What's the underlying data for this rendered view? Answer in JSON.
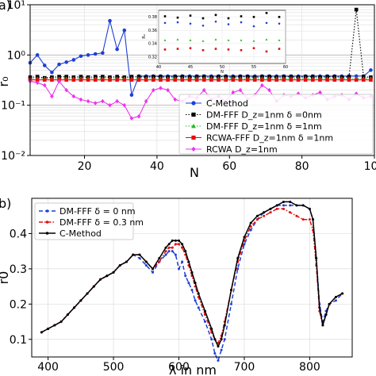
{
  "chart_data": [
    {
      "type": "line",
      "panel_label": "a)",
      "xlabel": "N",
      "ylabel": "r₀",
      "yscale": "log",
      "xlim": [
        5,
        100
      ],
      "ylim": [
        0.01,
        10
      ],
      "xticks": [
        20,
        40,
        60,
        80,
        100
      ],
      "yticks": [
        {
          "value": 0.01,
          "label": "10⁻²"
        },
        {
          "value": 0.1,
          "label": "10⁻¹"
        },
        {
          "value": 1,
          "label": "10⁰"
        },
        {
          "value": 10,
          "label": "10¹"
        }
      ],
      "grid": true,
      "legend_position": "lower-right",
      "series": [
        {
          "name": "C-Method",
          "color": "#1f3fd6",
          "marker": "circle",
          "linestyle": "solid",
          "x": [
            5,
            7,
            9,
            11,
            13,
            15,
            17,
            19,
            21,
            23,
            25,
            27,
            29,
            31,
            33,
            35,
            37,
            39,
            41,
            43,
            45,
            47,
            49,
            51,
            53,
            55,
            57,
            59,
            61,
            63,
            65,
            67,
            69,
            71,
            73,
            75,
            77,
            79,
            81,
            83,
            85,
            87,
            89,
            91,
            93,
            95,
            97,
            99
          ],
          "y": [
            0.7,
            1.0,
            0.62,
            0.45,
            0.65,
            0.72,
            0.8,
            0.95,
            1.0,
            1.05,
            1.1,
            4.8,
            1.3,
            3.1,
            0.16,
            0.38,
            0.38,
            0.38,
            0.38,
            0.38,
            0.38,
            0.38,
            0.38,
            0.38,
            0.38,
            0.38,
            0.38,
            0.38,
            0.38,
            0.38,
            0.38,
            0.38,
            0.38,
            0.38,
            0.38,
            0.38,
            0.38,
            0.38,
            0.38,
            0.38,
            0.38,
            0.38,
            0.38,
            0.38,
            0.38,
            0.38,
            0.38,
            0.5
          ]
        },
        {
          "name": "DM-FFF D_z=1nm δ =0nm",
          "color": "#000000",
          "marker": "square",
          "linestyle": "dotted",
          "x": [
            5,
            7,
            9,
            11,
            13,
            15,
            17,
            19,
            21,
            23,
            25,
            27,
            29,
            31,
            33,
            35,
            37,
            39,
            41,
            43,
            45,
            47,
            49,
            51,
            53,
            55,
            57,
            59,
            61,
            63,
            65,
            67,
            69,
            71,
            73,
            75,
            77,
            79,
            81,
            83,
            85,
            87,
            89,
            91,
            93,
            95,
            97,
            99
          ],
          "y": [
            0.36,
            0.37,
            0.35,
            0.36,
            0.37,
            0.37,
            0.36,
            0.37,
            0.36,
            0.37,
            0.37,
            0.36,
            0.37,
            0.36,
            0.37,
            0.37,
            0.36,
            0.37,
            0.37,
            0.36,
            0.37,
            0.37,
            0.36,
            0.37,
            0.37,
            0.36,
            0.37,
            0.37,
            0.36,
            0.37,
            0.37,
            0.36,
            0.37,
            0.37,
            0.36,
            0.37,
            0.37,
            0.36,
            0.37,
            0.37,
            0.36,
            0.37,
            0.37,
            0.36,
            0.37,
            8.0,
            0.37,
            0.36
          ]
        },
        {
          "name": "DM-FFF D_z=1nm δ =1nm",
          "color": "#22bb22",
          "marker": "triangle",
          "linestyle": "dotted",
          "x": [
            5,
            7,
            9,
            11,
            13,
            15,
            17,
            19,
            21,
            23,
            25,
            27,
            29,
            31,
            33,
            35,
            37,
            39,
            41,
            43,
            45,
            47,
            49,
            51,
            53,
            55,
            57,
            59,
            61,
            63,
            65,
            67,
            69,
            71,
            73,
            75,
            77,
            79,
            81,
            83,
            85,
            87,
            89,
            91,
            93,
            95,
            97,
            99
          ],
          "y": [
            0.34,
            0.34,
            0.34,
            0.34,
            0.34,
            0.34,
            0.34,
            0.34,
            0.34,
            0.34,
            0.34,
            0.34,
            0.34,
            0.34,
            0.34,
            0.34,
            0.34,
            0.34,
            0.34,
            0.34,
            0.34,
            0.34,
            0.34,
            0.34,
            0.34,
            0.34,
            0.34,
            0.34,
            0.34,
            0.34,
            0.34,
            0.34,
            0.34,
            0.34,
            0.34,
            0.34,
            0.34,
            0.34,
            0.34,
            0.34,
            0.34,
            0.34,
            0.34,
            0.34,
            0.34,
            0.34,
            0.34,
            0.34
          ]
        },
        {
          "name": "RCWA-FFF D_z=1nm δ =1nm",
          "color": "#e01010",
          "marker": "square",
          "linestyle": "solid",
          "x": [
            5,
            7,
            9,
            11,
            13,
            15,
            17,
            19,
            21,
            23,
            25,
            27,
            29,
            31,
            33,
            35,
            37,
            39,
            41,
            43,
            45,
            47,
            49,
            51,
            53,
            55,
            57,
            59,
            61,
            63,
            65,
            67,
            69,
            71,
            73,
            75,
            77,
            79,
            81,
            83,
            85,
            87,
            89,
            91,
            93,
            95,
            97,
            99
          ],
          "y": [
            0.32,
            0.32,
            0.32,
            0.32,
            0.32,
            0.32,
            0.32,
            0.32,
            0.32,
            0.32,
            0.32,
            0.32,
            0.32,
            0.32,
            0.32,
            0.32,
            0.32,
            0.32,
            0.32,
            0.32,
            0.32,
            0.32,
            0.32,
            0.32,
            0.32,
            0.32,
            0.32,
            0.32,
            0.32,
            0.32,
            0.32,
            0.32,
            0.32,
            0.32,
            0.32,
            0.32,
            0.32,
            0.32,
            0.32,
            0.32,
            0.32,
            0.32,
            0.32,
            0.32,
            0.32,
            0.32,
            0.32,
            0.32
          ]
        },
        {
          "name": "RCWA D_z=1nm",
          "color": "#ee33ee",
          "marker": "diamond",
          "linestyle": "solid",
          "x": [
            5,
            7,
            9,
            11,
            13,
            15,
            17,
            19,
            21,
            23,
            25,
            27,
            29,
            31,
            33,
            35,
            37,
            39,
            41,
            43,
            45,
            47,
            49,
            51,
            53,
            55,
            57,
            59,
            61,
            63,
            65,
            67,
            69,
            71,
            73,
            75,
            77,
            79,
            81,
            83,
            85,
            87,
            89,
            91,
            93,
            95,
            97,
            99
          ],
          "y": [
            0.3,
            0.28,
            0.25,
            0.15,
            0.3,
            0.2,
            0.15,
            0.13,
            0.12,
            0.11,
            0.12,
            0.1,
            0.12,
            0.1,
            0.055,
            0.06,
            0.12,
            0.2,
            0.22,
            0.2,
            0.13,
            0.12,
            0.15,
            0.14,
            0.2,
            0.13,
            0.15,
            0.12,
            0.18,
            0.2,
            0.13,
            0.16,
            0.25,
            0.2,
            0.12,
            0.16,
            0.15,
            0.17,
            0.14,
            0.16,
            0.18,
            0.13,
            0.15,
            0.16,
            0.13,
            0.17,
            0.14,
            0.15
          ]
        }
      ],
      "inset": {
        "xlabel": "N",
        "ylabel": "R₀",
        "xlim": [
          40,
          60
        ],
        "ylim": [
          0.31,
          0.39
        ],
        "xticks": [
          40,
          45,
          50,
          55,
          60
        ],
        "yticks": [
          0.32,
          0.34,
          0.36,
          0.38
        ],
        "series": [
          {
            "color": "#000000",
            "marker": "square",
            "x": [
              41,
              43,
              45,
              47,
              49,
              51,
              53,
              55,
              57,
              59
            ],
            "y": [
              0.381,
              0.379,
              0.382,
              0.378,
              0.383,
              0.378,
              0.381,
              0.38,
              0.386,
              0.38
            ]
          },
          {
            "color": "#1f3fd6",
            "marker": "circle",
            "x": [
              41,
              43,
              45,
              47,
              49,
              51,
              53,
              55,
              57,
              59
            ],
            "y": [
              0.371,
              0.372,
              0.37,
              0.367,
              0.373,
              0.369,
              0.372,
              0.366,
              0.371,
              0.37
            ]
          },
          {
            "color": "#22bb22",
            "marker": "triangle",
            "x": [
              41,
              43,
              45,
              47,
              49,
              51,
              53,
              55,
              57,
              59
            ],
            "y": [
              0.345,
              0.346,
              0.345,
              0.344,
              0.346,
              0.345,
              0.345,
              0.344,
              0.346,
              0.345
            ]
          },
          {
            "color": "#e01010",
            "marker": "square",
            "x": [
              41,
              43,
              45,
              47,
              49,
              51,
              53,
              55,
              57,
              59
            ],
            "y": [
              0.331,
              0.332,
              0.333,
              0.33,
              0.332,
              0.331,
              0.33,
              0.333,
              0.328,
              0.332
            ]
          }
        ]
      }
    },
    {
      "type": "line",
      "panel_label": "b)",
      "xlabel": "λ in nm",
      "ylabel": "r0",
      "xlim": [
        375,
        865
      ],
      "ylim": [
        0.05,
        0.5
      ],
      "xticks": [
        400,
        500,
        600,
        700,
        800
      ],
      "yticks": [
        0.1,
        0.2,
        0.3,
        0.4
      ],
      "grid": true,
      "legend_position": "top-left",
      "x": [
        390,
        400,
        410,
        420,
        430,
        440,
        450,
        460,
        470,
        480,
        490,
        500,
        510,
        520,
        530,
        540,
        550,
        560,
        570,
        580,
        585,
        590,
        595,
        600,
        605,
        610,
        615,
        620,
        625,
        630,
        640,
        650,
        655,
        660,
        665,
        670,
        680,
        690,
        700,
        710,
        720,
        730,
        740,
        750,
        760,
        770,
        780,
        790,
        800,
        805,
        810,
        815,
        820,
        825,
        830,
        840,
        850
      ],
      "series": [
        {
          "name": "DM-FFF δ = 0 nm",
          "color": "#1f3fd6",
          "linestyle": "dashed",
          "y": [
            0.12,
            0.13,
            0.14,
            0.15,
            0.17,
            0.19,
            0.21,
            0.23,
            0.25,
            0.27,
            0.28,
            0.29,
            0.31,
            0.32,
            0.34,
            0.33,
            0.31,
            0.29,
            0.32,
            0.34,
            0.35,
            0.35,
            0.34,
            0.3,
            0.32,
            0.28,
            0.26,
            0.24,
            0.21,
            0.19,
            0.15,
            0.1,
            0.06,
            0.04,
            0.07,
            0.1,
            0.2,
            0.3,
            0.37,
            0.41,
            0.44,
            0.46,
            0.47,
            0.48,
            0.48,
            0.48,
            0.48,
            0.48,
            0.47,
            0.44,
            0.33,
            0.2,
            0.15,
            0.18,
            0.2,
            0.21,
            0.23
          ]
        },
        {
          "name": "DM-FFF δ = 0.3 nm",
          "color": "#e01010",
          "linestyle": "dashdot",
          "y": [
            0.12,
            0.13,
            0.14,
            0.15,
            0.17,
            0.19,
            0.21,
            0.23,
            0.25,
            0.27,
            0.28,
            0.29,
            0.31,
            0.32,
            0.34,
            0.34,
            0.32,
            0.3,
            0.32,
            0.35,
            0.36,
            0.36,
            0.37,
            0.37,
            0.36,
            0.34,
            0.31,
            0.28,
            0.25,
            0.22,
            0.17,
            0.12,
            0.1,
            0.09,
            0.11,
            0.15,
            0.24,
            0.32,
            0.38,
            0.42,
            0.44,
            0.45,
            0.46,
            0.47,
            0.47,
            0.46,
            0.45,
            0.44,
            0.44,
            0.41,
            0.31,
            0.18,
            0.14,
            0.17,
            0.2,
            0.22,
            0.23
          ]
        },
        {
          "name": "C-Method",
          "color": "#000000",
          "linestyle": "solid",
          "y": [
            0.12,
            0.13,
            0.14,
            0.15,
            0.17,
            0.19,
            0.21,
            0.23,
            0.25,
            0.27,
            0.28,
            0.29,
            0.31,
            0.32,
            0.34,
            0.34,
            0.32,
            0.3,
            0.33,
            0.36,
            0.37,
            0.38,
            0.38,
            0.38,
            0.37,
            0.35,
            0.32,
            0.29,
            0.26,
            0.23,
            0.18,
            0.13,
            0.1,
            0.08,
            0.1,
            0.14,
            0.24,
            0.33,
            0.39,
            0.43,
            0.45,
            0.46,
            0.47,
            0.48,
            0.49,
            0.49,
            0.48,
            0.48,
            0.47,
            0.44,
            0.33,
            0.19,
            0.14,
            0.17,
            0.2,
            0.22,
            0.23
          ]
        }
      ]
    }
  ]
}
